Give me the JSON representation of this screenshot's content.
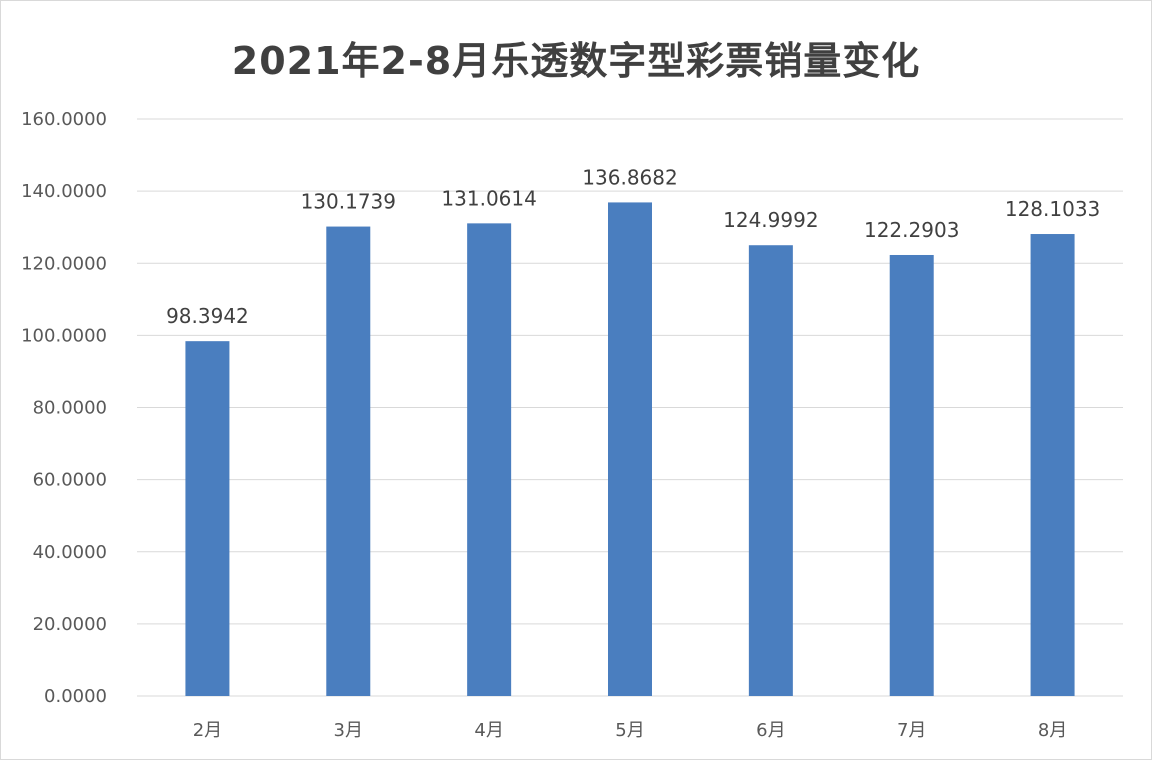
{
  "chart_data": {
    "type": "bar",
    "title": "2021年2-8月乐透数字型彩票销量变化",
    "categories": [
      "2月",
      "3月",
      "4月",
      "5月",
      "6月",
      "7月",
      "8月"
    ],
    "values": [
      98.3942,
      130.1739,
      131.0614,
      136.8682,
      124.9992,
      122.2903,
      128.1033
    ],
    "value_labels": [
      "98.3942",
      "130.1739",
      "131.0614",
      "136.8682",
      "124.9992",
      "122.2903",
      "128.1033"
    ],
    "y_ticks": [
      "0.0000",
      "20.0000",
      "40.0000",
      "60.0000",
      "80.0000",
      "100.0000",
      "120.0000",
      "140.0000",
      "160.0000"
    ],
    "ylim": [
      0,
      160
    ],
    "xlabel": "",
    "ylabel": "",
    "grid": true,
    "legend": "none",
    "bar_color": "#4a7ebf",
    "grid_color": "#d9d9d9"
  }
}
